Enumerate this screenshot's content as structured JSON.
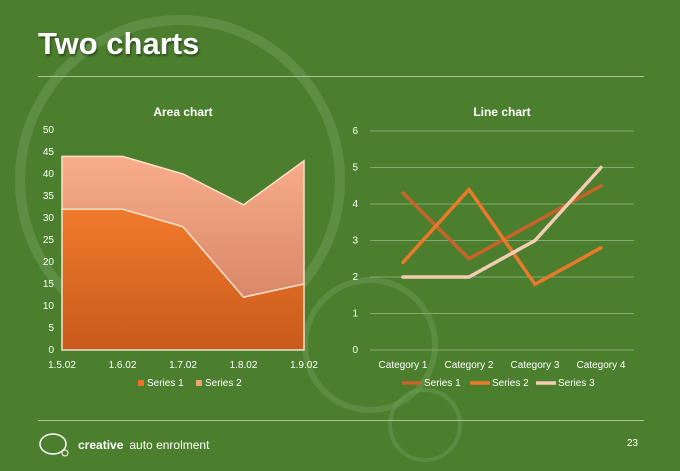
{
  "slide": {
    "title": "Two charts",
    "page_number": "23",
    "logo": {
      "brand": "creative",
      "tagline": "auto enrolment"
    },
    "colors": {
      "background": "#4b7f2e",
      "series1_area": "#e8722a",
      "series2_area": "#f2a07a",
      "line1": "#c9632a",
      "line2": "#e97a2a",
      "line3": "#f3cdb3"
    }
  },
  "chart_data": [
    {
      "type": "area",
      "title": "Area chart",
      "categories": [
        "1.5.02",
        "1.6.02",
        "1.7.02",
        "1.8.02",
        "1.9.02"
      ],
      "series": [
        {
          "name": "Series 1",
          "values": [
            32,
            32,
            28,
            12,
            15
          ]
        },
        {
          "name": "Series 2",
          "values": [
            12,
            12,
            12,
            21,
            28
          ]
        }
      ],
      "stacked": true,
      "ylim": [
        0,
        50
      ],
      "yticks": [
        0,
        5,
        10,
        15,
        20,
        25,
        30,
        35,
        40,
        45,
        50
      ],
      "legend": "bottom"
    },
    {
      "type": "line",
      "title": "Line chart",
      "categories": [
        "Category 1",
        "Category 2",
        "Category 3",
        "Category 4"
      ],
      "series": [
        {
          "name": "Series 1",
          "values": [
            4.3,
            2.5,
            3.5,
            4.5
          ]
        },
        {
          "name": "Series 2",
          "values": [
            2.4,
            4.4,
            1.8,
            2.8
          ]
        },
        {
          "name": "Series 3",
          "values": [
            2,
            2,
            3,
            5
          ]
        }
      ],
      "ylim": [
        0,
        6
      ],
      "yticks": [
        0,
        1,
        2,
        3,
        4,
        5,
        6
      ],
      "grid": true,
      "legend": "bottom"
    }
  ]
}
